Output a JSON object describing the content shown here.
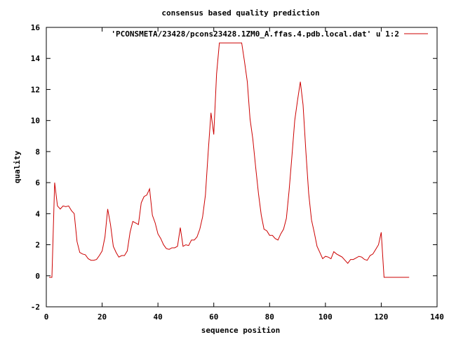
{
  "chart_data": {
    "type": "line",
    "title": "consensus based quality prediction",
    "xlabel": "sequence position",
    "ylabel": "quality",
    "xlim": [
      0,
      140
    ],
    "ylim": [
      -2,
      16
    ],
    "xticks": [
      0,
      20,
      40,
      60,
      80,
      100,
      120,
      140
    ],
    "yticks": [
      -2,
      0,
      2,
      4,
      6,
      8,
      10,
      12,
      14,
      16
    ],
    "grid": false,
    "legend_position": "top-right",
    "series": [
      {
        "name": "'PCONSMETA/23428/pcons23428.1ZM0_A.ffas.4.pdb.local.dat' u 1:2",
        "color": "#cc0000",
        "points": [
          [
            1,
            -0.1
          ],
          [
            2,
            -0.1
          ],
          [
            3,
            6.0
          ],
          [
            4,
            4.5
          ],
          [
            5,
            4.3
          ],
          [
            6,
            4.5
          ],
          [
            7,
            4.45
          ],
          [
            8,
            4.5
          ],
          [
            9,
            4.2
          ],
          [
            10,
            4.0
          ],
          [
            11,
            2.2
          ],
          [
            12,
            1.5
          ],
          [
            13,
            1.4
          ],
          [
            14,
            1.35
          ],
          [
            15,
            1.1
          ],
          [
            16,
            1.0
          ],
          [
            17,
            1.0
          ],
          [
            18,
            1.05
          ],
          [
            19,
            1.3
          ],
          [
            20,
            1.6
          ],
          [
            21,
            2.5
          ],
          [
            22,
            4.3
          ],
          [
            23,
            3.3
          ],
          [
            24,
            1.9
          ],
          [
            25,
            1.5
          ],
          [
            26,
            1.2
          ],
          [
            27,
            1.3
          ],
          [
            28,
            1.3
          ],
          [
            29,
            1.6
          ],
          [
            30,
            2.8
          ],
          [
            31,
            3.5
          ],
          [
            32,
            3.4
          ],
          [
            33,
            3.3
          ],
          [
            34,
            4.7
          ],
          [
            35,
            5.1
          ],
          [
            36,
            5.2
          ],
          [
            37,
            5.6
          ],
          [
            38,
            3.9
          ],
          [
            39,
            3.4
          ],
          [
            40,
            2.7
          ],
          [
            41,
            2.4
          ],
          [
            42,
            2.0
          ],
          [
            43,
            1.75
          ],
          [
            44,
            1.7
          ],
          [
            45,
            1.8
          ],
          [
            46,
            1.8
          ],
          [
            47,
            1.9
          ],
          [
            48,
            3.1
          ],
          [
            49,
            1.9
          ],
          [
            50,
            2.0
          ],
          [
            51,
            1.95
          ],
          [
            52,
            2.3
          ],
          [
            53,
            2.3
          ],
          [
            54,
            2.5
          ],
          [
            55,
            3.0
          ],
          [
            56,
            3.8
          ],
          [
            57,
            5.2
          ],
          [
            58,
            8.0
          ],
          [
            59,
            10.5
          ],
          [
            60,
            9.1
          ],
          [
            61,
            13.0
          ],
          [
            62,
            15.0
          ],
          [
            63,
            15.0
          ],
          [
            64,
            15.0
          ],
          [
            65,
            15.0
          ],
          [
            66,
            15.0
          ],
          [
            67,
            15.0
          ],
          [
            68,
            15.0
          ],
          [
            69,
            15.0
          ],
          [
            70,
            15.0
          ],
          [
            71,
            13.8
          ],
          [
            72,
            12.5
          ],
          [
            73,
            10.1
          ],
          [
            74,
            8.8
          ],
          [
            75,
            7.0
          ],
          [
            76,
            5.3
          ],
          [
            77,
            3.9
          ],
          [
            78,
            3.0
          ],
          [
            79,
            2.9
          ],
          [
            80,
            2.6
          ],
          [
            81,
            2.6
          ],
          [
            82,
            2.4
          ],
          [
            83,
            2.3
          ],
          [
            84,
            2.7
          ],
          [
            85,
            3.0
          ],
          [
            86,
            3.7
          ],
          [
            87,
            5.5
          ],
          [
            88,
            7.7
          ],
          [
            89,
            10.0
          ],
          [
            90,
            11.3
          ],
          [
            91,
            12.5
          ],
          [
            92,
            11.0
          ],
          [
            93,
            8.0
          ],
          [
            94,
            5.3
          ],
          [
            95,
            3.6
          ],
          [
            96,
            2.8
          ],
          [
            97,
            1.9
          ],
          [
            98,
            1.5
          ],
          [
            99,
            1.1
          ],
          [
            100,
            1.25
          ],
          [
            101,
            1.2
          ],
          [
            102,
            1.1
          ],
          [
            103,
            1.55
          ],
          [
            104,
            1.4
          ],
          [
            105,
            1.3
          ],
          [
            106,
            1.2
          ],
          [
            107,
            1.0
          ],
          [
            108,
            0.8
          ],
          [
            109,
            1.05
          ],
          [
            110,
            1.05
          ],
          [
            111,
            1.15
          ],
          [
            112,
            1.25
          ],
          [
            113,
            1.2
          ],
          [
            114,
            1.05
          ],
          [
            115,
            1.0
          ],
          [
            116,
            1.3
          ],
          [
            117,
            1.4
          ],
          [
            118,
            1.7
          ],
          [
            119,
            2.0
          ],
          [
            120,
            2.8
          ],
          [
            121,
            -0.1
          ],
          [
            122,
            -0.1
          ],
          [
            123,
            -0.1
          ],
          [
            124,
            -0.1
          ],
          [
            125,
            -0.1
          ],
          [
            126,
            -0.1
          ],
          [
            127,
            -0.1
          ],
          [
            128,
            -0.1
          ],
          [
            129,
            -0.1
          ],
          [
            130,
            -0.1
          ]
        ]
      }
    ]
  }
}
